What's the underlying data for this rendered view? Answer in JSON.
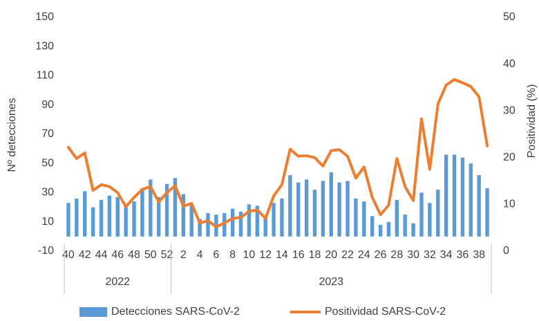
{
  "chart_data": {
    "type": "bar_line",
    "y_label": "Nº detecciones",
    "y2_label": "Positividad (%)",
    "categories": [
      "40",
      null,
      "42",
      null,
      "44",
      null,
      "46",
      null,
      "48",
      null,
      "50",
      null,
      "52",
      null,
      "2",
      null,
      "4",
      null,
      "6",
      null,
      "8",
      null,
      "10",
      null,
      "12",
      null,
      "14",
      null,
      "16",
      null,
      "18",
      null,
      "20",
      null,
      "22",
      null,
      "24",
      null,
      "26",
      null,
      "28",
      null,
      "30",
      null,
      "32",
      null,
      "34",
      null,
      "36",
      null,
      "38",
      null
    ],
    "category_groups": [
      {
        "label": "2022",
        "count": 13
      },
      {
        "label": "2023",
        "count": 39
      }
    ],
    "series": [
      {
        "name": "Detecciones SARS-CoV-2",
        "type": "bar",
        "color": "#5b9bd5",
        "values": [
          23,
          26,
          31,
          20,
          25,
          28,
          27,
          21,
          24,
          33,
          39,
          27,
          36,
          40,
          29,
          22,
          12,
          16,
          15,
          16,
          19,
          17,
          22,
          21,
          14,
          23,
          26,
          42,
          37,
          39,
          32,
          38,
          44,
          37,
          38,
          26,
          24,
          14,
          8,
          10,
          25,
          15,
          9,
          30,
          23,
          32,
          56,
          56,
          54,
          50,
          42,
          33
        ]
      },
      {
        "name": "Positividad SARS-CoV-2",
        "type": "line",
        "axis": "y2",
        "color": "#ed7d31",
        "values": [
          22.2,
          19.8,
          21,
          13,
          14.2,
          13.8,
          12.5,
          9.5,
          11.5,
          13.2,
          13.8,
          10.5,
          12.5,
          14,
          9.6,
          10.2,
          6,
          6.5,
          5.2,
          6,
          7,
          7.2,
          8.5,
          8.8,
          7,
          11.8,
          14.2,
          21.8,
          20.3,
          20.4,
          20,
          18.2,
          21.5,
          21.7,
          20.3,
          15.6,
          18,
          11.5,
          7.8,
          9.8,
          19.8,
          13.8,
          10.8,
          28.3,
          17.5,
          31.5,
          35.5,
          36.7,
          36,
          35.2,
          33,
          22.5
        ]
      }
    ],
    "ylim": [
      -10,
      150
    ],
    "yticks": [
      -10,
      10,
      30,
      50,
      70,
      90,
      110,
      130,
      150
    ],
    "y2lim": [
      0,
      50
    ],
    "y2ticks": [
      0,
      10,
      20,
      30,
      40,
      50
    ],
    "grid": false,
    "legend": "bottom"
  }
}
